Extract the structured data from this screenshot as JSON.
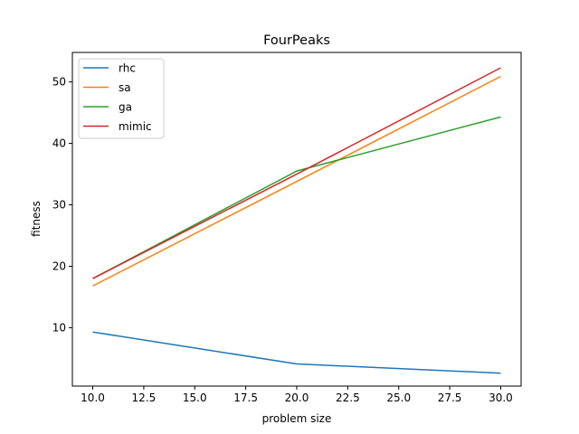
{
  "chart_data": {
    "type": "line",
    "title": "FourPeaks",
    "xlabel": "problem size",
    "ylabel": "fitness",
    "xlim": [
      9.0,
      31.0
    ],
    "ylim": [
      0.5,
      54.8
    ],
    "xticks": [
      10.0,
      12.5,
      15.0,
      17.5,
      20.0,
      22.5,
      25.0,
      27.5,
      30.0
    ],
    "xtick_labels": [
      "10.0",
      "12.5",
      "15.0",
      "17.5",
      "20.0",
      "22.5",
      "25.0",
      "27.5",
      "30.0"
    ],
    "yticks": [
      10,
      20,
      30,
      40,
      50
    ],
    "ytick_labels": [
      "10",
      "20",
      "30",
      "40",
      "50"
    ],
    "grid": false,
    "legend_position": "upper-left",
    "x": [
      10,
      20,
      30
    ],
    "series": [
      {
        "name": "rhc",
        "color": "#1f77b4",
        "values": [
          9.3,
          4.1,
          2.6
        ]
      },
      {
        "name": "sa",
        "color": "#ff7f0e",
        "values": [
          16.8,
          33.8,
          50.9
        ]
      },
      {
        "name": "ga",
        "color": "#2ca02c",
        "values": [
          18.0,
          35.5,
          44.3
        ]
      },
      {
        "name": "mimic",
        "color": "#d62728",
        "values": [
          18.0,
          35.0,
          52.3
        ]
      }
    ]
  }
}
